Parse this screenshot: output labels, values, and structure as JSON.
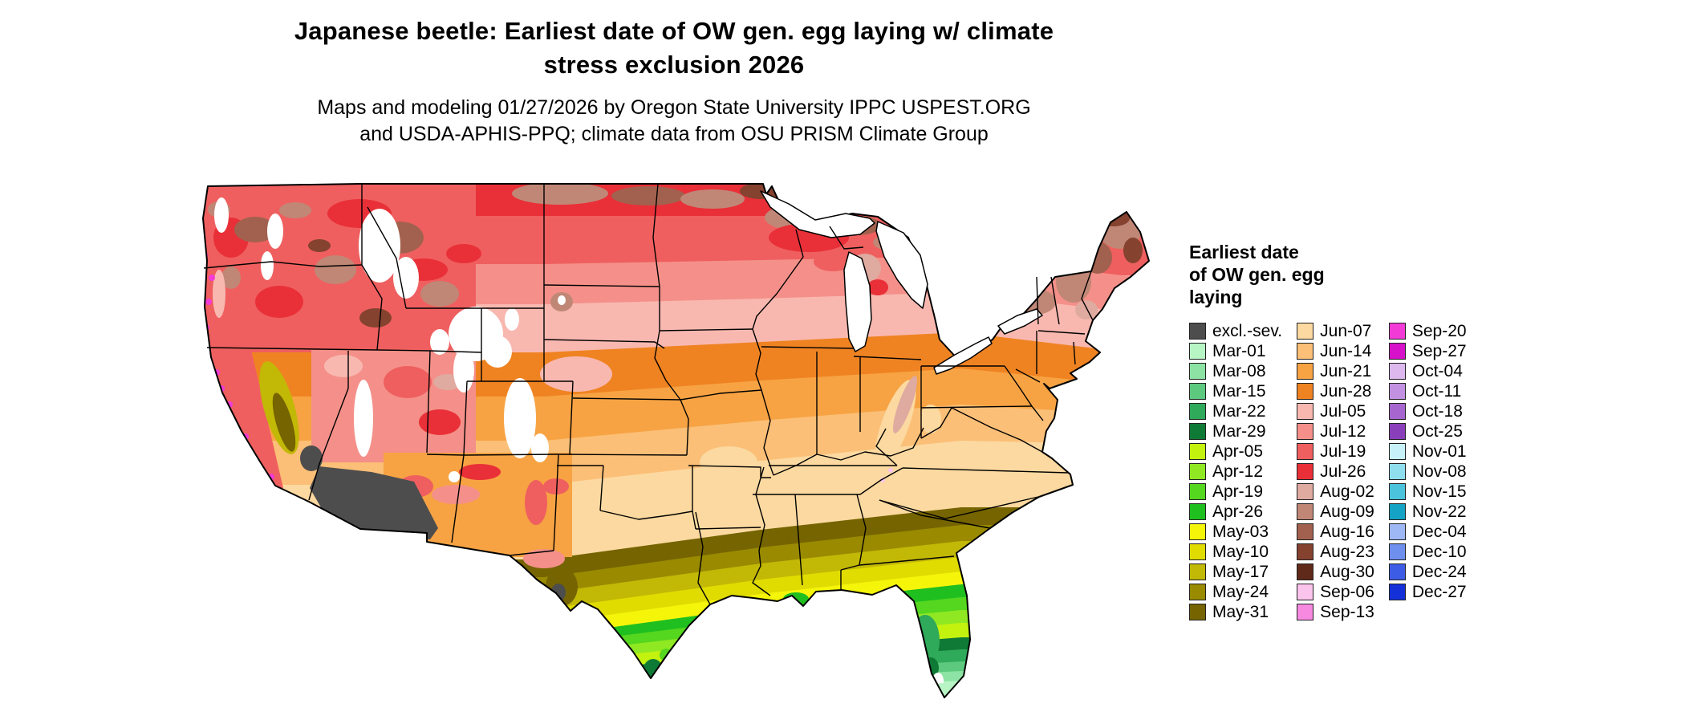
{
  "header": {
    "title": "Japanese beetle: Earliest date of OW gen. egg laying w/ climate stress exclusion 2026",
    "subtitle": "Maps and modeling 01/27/2026 by Oregon State University IPPC USPEST.ORG and USDA-APHIS-PPQ; climate data from OSU PRISM Climate Group"
  },
  "legend": {
    "title_lines": [
      "Earliest date",
      "of OW gen. egg",
      "laying"
    ],
    "columns": [
      [
        {
          "label": "excl.-sev.",
          "color": "#4d4d4d"
        },
        {
          "label": "Mar-01",
          "color": "#b8f5c5"
        },
        {
          "label": "Mar-08",
          "color": "#8ce3a3"
        },
        {
          "label": "Mar-15",
          "color": "#5cc97e"
        },
        {
          "label": "Mar-22",
          "color": "#2fa95a"
        },
        {
          "label": "Mar-29",
          "color": "#0f7a35"
        },
        {
          "label": "Apr-05",
          "color": "#c3f20f"
        },
        {
          "label": "Apr-12",
          "color": "#8fe822"
        },
        {
          "label": "Apr-19",
          "color": "#55d61f"
        },
        {
          "label": "Apr-26",
          "color": "#1fbf1f"
        },
        {
          "label": "May-03",
          "color": "#f5f50a"
        },
        {
          "label": "May-10",
          "color": "#e0dc00"
        },
        {
          "label": "May-17",
          "color": "#c2b806"
        },
        {
          "label": "May-24",
          "color": "#998a00"
        },
        {
          "label": "May-31",
          "color": "#756400"
        }
      ],
      [
        {
          "label": "Jun-07",
          "color": "#fcd9a0"
        },
        {
          "label": "Jun-14",
          "color": "#fbbf77"
        },
        {
          "label": "Jun-21",
          "color": "#f7a343"
        },
        {
          "label": "Jun-28",
          "color": "#ef8322"
        },
        {
          "label": "Jul-05",
          "color": "#f8b8b0"
        },
        {
          "label": "Jul-12",
          "color": "#f49089"
        },
        {
          "label": "Jul-19",
          "color": "#ef5f5f"
        },
        {
          "label": "Jul-26",
          "color": "#e93038"
        },
        {
          "label": "Aug-02",
          "color": "#dfaaa0"
        },
        {
          "label": "Aug-09",
          "color": "#c08776"
        },
        {
          "label": "Aug-16",
          "color": "#a2614e"
        },
        {
          "label": "Aug-23",
          "color": "#84422f"
        },
        {
          "label": "Aug-30",
          "color": "#5f2a1a"
        },
        {
          "label": "Sep-06",
          "color": "#fbc4ec"
        },
        {
          "label": "Sep-13",
          "color": "#f78ae0"
        }
      ],
      [
        {
          "label": "Sep-20",
          "color": "#f23ad6"
        },
        {
          "label": "Sep-27",
          "color": "#d611c9"
        },
        {
          "label": "Oct-04",
          "color": "#dcb8ee"
        },
        {
          "label": "Oct-11",
          "color": "#c291e2"
        },
        {
          "label": "Oct-18",
          "color": "#a765cf"
        },
        {
          "label": "Oct-25",
          "color": "#8a3fba"
        },
        {
          "label": "Nov-01",
          "color": "#c8f2fa"
        },
        {
          "label": "Nov-08",
          "color": "#8edeee"
        },
        {
          "label": "Nov-15",
          "color": "#4cc3dd"
        },
        {
          "label": "Nov-22",
          "color": "#14a3c4"
        },
        {
          "label": "Dec-04",
          "color": "#9db8f5"
        },
        {
          "label": "Dec-10",
          "color": "#6f8fee"
        },
        {
          "label": "Dec-24",
          "color": "#3d5ce6"
        },
        {
          "label": "Dec-27",
          "color": "#1430d8"
        }
      ]
    ]
  },
  "map": {
    "background": "#ffffff",
    "border_color": "#000000",
    "water_color": "#ffffff"
  }
}
